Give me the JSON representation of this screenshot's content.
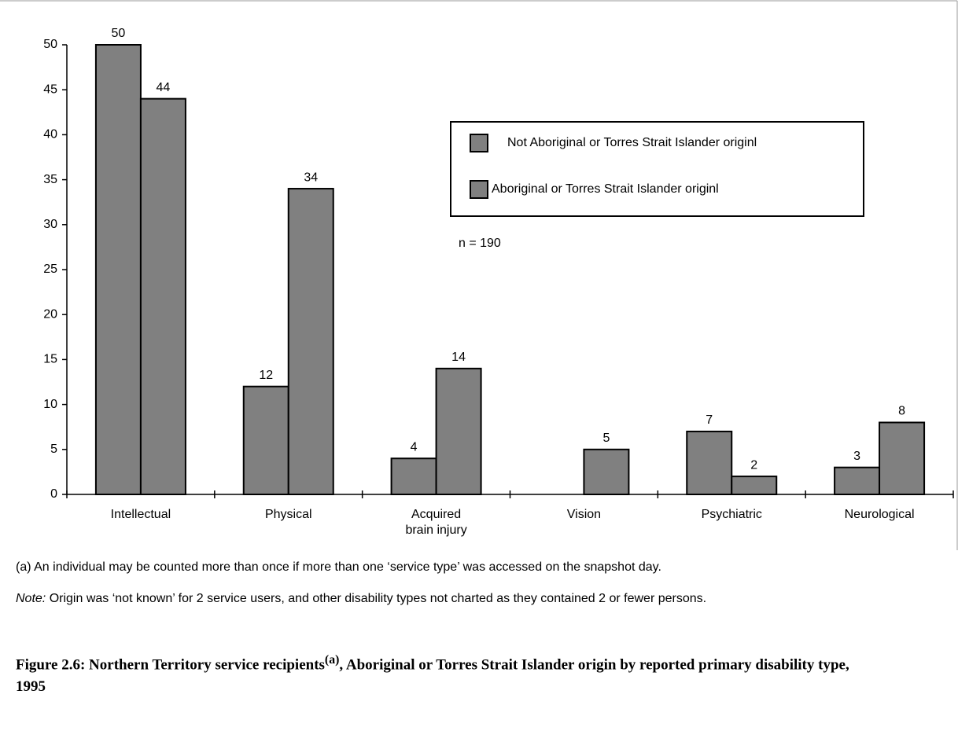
{
  "chart_data": {
    "type": "bar",
    "categories": [
      "Intellectual",
      "Physical",
      "Acquired brain injury",
      "Vision",
      "Psychiatric",
      "Neurological"
    ],
    "series": [
      {
        "name": "Not Aboriginal or Torres Strait Islander originl",
        "color": "#808080",
        "values": [
          50,
          12,
          4,
          null,
          7,
          3
        ]
      },
      {
        "name": "Aboriginal or Torres Strait Islander originl",
        "color": "#808080",
        "values": [
          44,
          34,
          14,
          5,
          2,
          8
        ]
      }
    ],
    "ylim": [
      0,
      50
    ],
    "yticks": [
      0,
      5,
      10,
      15,
      20,
      25,
      30,
      35,
      40,
      45,
      50
    ],
    "annotation": "n = 190",
    "footnote": "(a) An individual may be counted more than once if more than one ‘service type’ was accessed on the snapshot day.",
    "note": {
      "label": "Note:",
      "text": " Origin was ‘not known’ for 2 service users, and other disability types not charted as they contained 2 or fewer persons."
    },
    "caption": {
      "text": "Figure 2.6: Northern Territory service recipients",
      "superscript": "(a)",
      "rest": ", Aboriginal or Torres Strait Islander origin by reported primary disability type, 1995"
    }
  }
}
